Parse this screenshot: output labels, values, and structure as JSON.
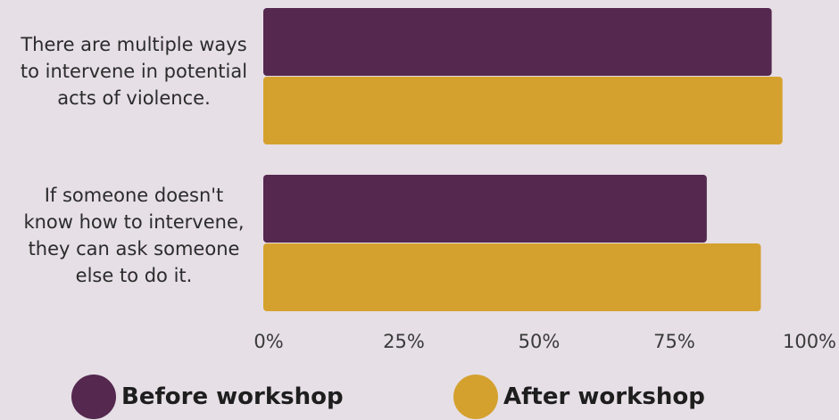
{
  "chart_data": {
    "type": "bar",
    "orientation": "horizontal",
    "categories": [
      "There are multiple ways to intervene in potential acts of violence.",
      "If someone doesn't know how to intervene, they can ask someone else to do it."
    ],
    "category_lines": [
      [
        "There are multiple ways",
        "to intervene in potential",
        "acts of violence."
      ],
      [
        "If someone doesn't",
        "know how to intervene,",
        "they can ask someone",
        "else to do it."
      ]
    ],
    "series": [
      {
        "name": "Before workshop",
        "values": [
          93,
          81
        ],
        "color": "#54284f"
      },
      {
        "name": "After workshop",
        "values": [
          95,
          91
        ],
        "color": "#d4a12e"
      }
    ],
    "xlim": [
      0,
      100
    ],
    "xticks": [
      "0%",
      "25%",
      "50%",
      "75%",
      "100%"
    ],
    "legend_position": "bottom",
    "grid": false
  },
  "legend": {
    "before_label": "Before workshop",
    "after_label": "After workshop"
  }
}
